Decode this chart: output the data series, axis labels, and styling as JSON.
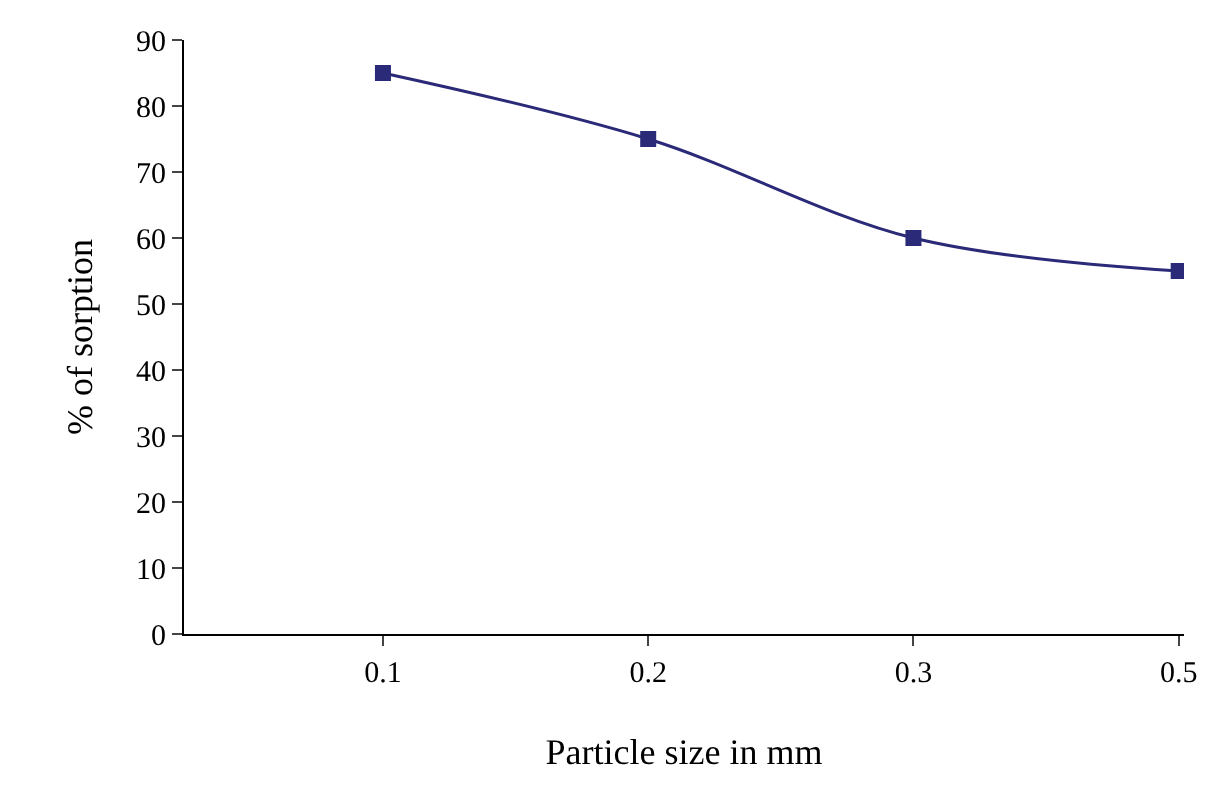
{
  "chart_data": {
    "type": "line",
    "xlabel": "Particle size in mm",
    "ylabel": "% of sorption",
    "categories": [
      "0.1",
      "0.2",
      "0.3",
      "0.5"
    ],
    "series": [
      {
        "color": "#2a2a78",
        "values": [
          85,
          75,
          60,
          55
        ]
      }
    ],
    "ylim": [
      0,
      90
    ],
    "yticks": [
      0,
      10,
      20,
      30,
      40,
      50,
      60,
      70,
      80,
      90
    ],
    "grid": false,
    "marker": "square",
    "line_style": "solid"
  }
}
